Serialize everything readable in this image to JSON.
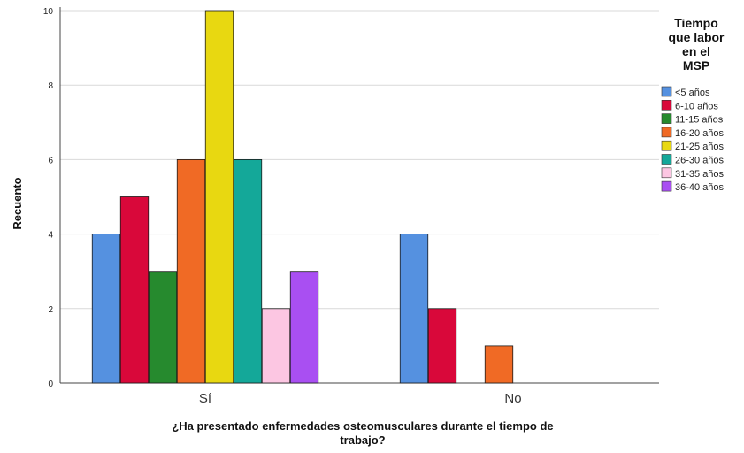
{
  "chart_data": {
    "type": "bar",
    "categories": [
      "Sí",
      "No"
    ],
    "series": [
      {
        "name": "<5 años",
        "color": "#5591e0",
        "values": [
          4,
          4
        ]
      },
      {
        "name": "6-10 años",
        "color": "#d9083a",
        "values": [
          5,
          2
        ]
      },
      {
        "name": "11-15 años",
        "color": "#268a2e",
        "values": [
          3,
          0
        ]
      },
      {
        "name": "16-20 años",
        "color": "#f06a25",
        "values": [
          6,
          1
        ]
      },
      {
        "name": "21-25 años",
        "color": "#e8d811",
        "values": [
          10,
          0
        ]
      },
      {
        "name": "26-30 años",
        "color": "#14a899",
        "values": [
          6,
          0
        ]
      },
      {
        "name": "31-35 años",
        "color": "#fcc6e2",
        "values": [
          2,
          0
        ]
      },
      {
        "name": "36-40 años",
        "color": "#a94ff2",
        "values": [
          3,
          0
        ]
      }
    ],
    "ylabel": "Recuento",
    "xlabel_lines": [
      "¿Ha presentado enfermedades osteomusculares durante el tiempo de",
      "trabajo?"
    ],
    "ylim": [
      0,
      10
    ],
    "yticks": [
      0,
      2,
      4,
      6,
      8,
      10
    ],
    "grid": true,
    "legend": {
      "title_lines": [
        "Tiempo",
        "que labor",
        "en el",
        "MSP"
      ],
      "placement": "right"
    }
  }
}
